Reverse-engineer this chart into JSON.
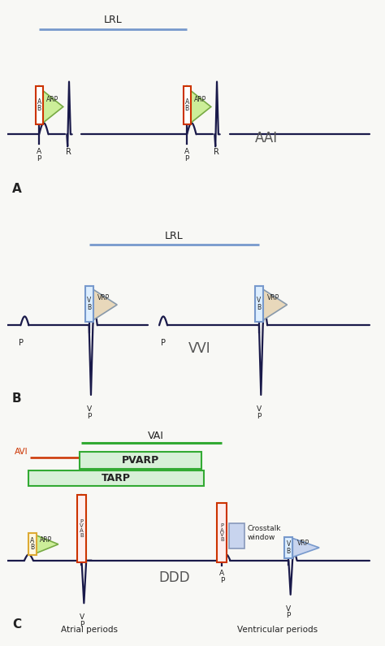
{
  "bg_color": "#f8f8f5",
  "ecg_color": "#1a1a4a",
  "panel_A": {
    "label": "A",
    "mode": "AAI",
    "lrl_label": "LRL",
    "lrl_color": "#7799cc",
    "ab_box_color": "#cc3300",
    "arp_tri_fill": "#ccee99",
    "arp_tri_edge": "#77aa44",
    "arp_label": "ARP",
    "ab_label": "A\nB"
  },
  "panel_B": {
    "label": "B",
    "mode": "VVI",
    "lrl_label": "LRL",
    "lrl_color": "#7799cc",
    "vb_box_color": "#7799cc",
    "vrp_tri_fill": "#e8d8bb",
    "vrp_tri_edge": "#8899aa",
    "vrp_label": "VRP",
    "vb_label": "V\nB"
  },
  "panel_C": {
    "label": "C",
    "mode": "DDD",
    "vai_label": "VAI",
    "vai_color": "#33aa33",
    "avi_label": "AVI",
    "avi_color": "#cc3300",
    "pvarp_label": "PVARP",
    "pvarp_fill": "#d8f0d8",
    "pvarp_edge": "#33aa33",
    "tarp_label": "TARP",
    "tarp_fill": "#d8f0d8",
    "tarp_edge": "#33aa33",
    "ab_box_color": "#ddaa33",
    "arp_tri_fill": "#ccee99",
    "arp_tri_edge": "#77aa44",
    "pvab_box_color": "#cc3300",
    "pvab_fill": "#ffeeee",
    "vb_box_color": "#7799cc",
    "vb_fill": "#ddeeff",
    "vrp_tri_fill": "#c8d4ee",
    "vrp_tri_edge": "#7799cc",
    "crosstalk_fill": "#c8d4ee",
    "crosstalk_edge": "#8899bb",
    "crosstalk_label": "Crosstalk\nwindow",
    "atrial_label": "Atrial periods",
    "ventricular_label": "Ventricular periods"
  }
}
